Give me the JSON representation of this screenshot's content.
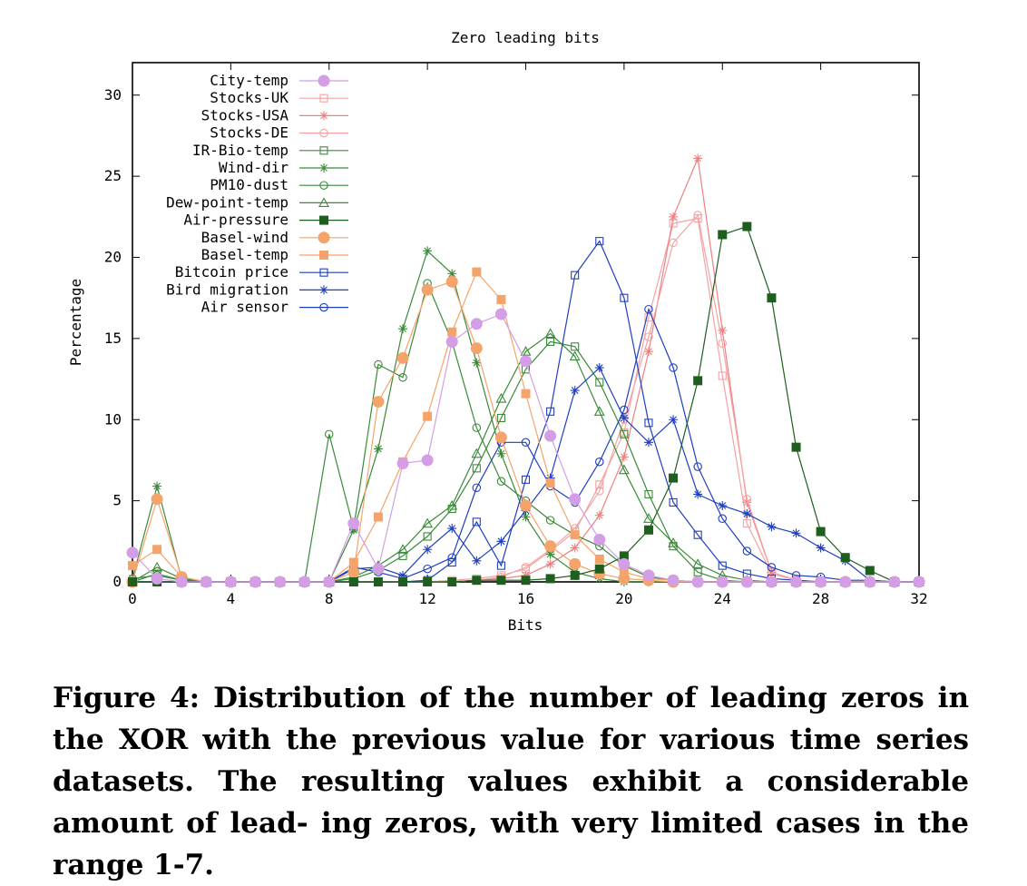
{
  "caption": "Figure 4: Distribution of the number of leading zeros in the XOR with the previous value for various time series datasets. The resulting values exhibit a considerable amount of lead- ing zeros, with very limited cases in the range 1-7.",
  "chart_data": {
    "type": "line",
    "title": "Zero leading bits",
    "xlabel": "Bits",
    "ylabel": "Percentage",
    "xlim": [
      0,
      32
    ],
    "ylim": [
      0,
      32
    ],
    "xticks": [
      0,
      4,
      8,
      12,
      16,
      20,
      24,
      28,
      32
    ],
    "yticks": [
      0,
      5,
      10,
      15,
      20,
      25,
      30
    ],
    "grid": false,
    "legend_position": "top-left",
    "series": [
      {
        "name": "City-temp",
        "color": "#d49ee6",
        "marker": "circle-filled-large",
        "x": [
          0,
          1,
          2,
          3,
          4,
          5,
          6,
          7,
          8,
          9,
          10,
          11,
          12,
          13,
          14,
          15,
          16,
          17,
          18,
          19,
          20,
          21,
          22,
          23,
          24,
          25,
          26,
          27,
          28,
          29,
          30,
          31,
          32
        ],
        "y": [
          1.8,
          0.2,
          0,
          0,
          0,
          0,
          0,
          0,
          0,
          3.6,
          0.8,
          7.3,
          7.5,
          14.8,
          15.9,
          16.5,
          13.6,
          9,
          5.1,
          2.6,
          1.1,
          0.4,
          0.1,
          0,
          0,
          0,
          0,
          0,
          0,
          0,
          0,
          0,
          0
        ]
      },
      {
        "name": "Stocks-UK",
        "color": "#f4a3a3",
        "marker": "square-open",
        "x": [
          0,
          1,
          2,
          3,
          4,
          5,
          6,
          7,
          8,
          9,
          10,
          11,
          12,
          13,
          14,
          15,
          16,
          17,
          18,
          19,
          20,
          21,
          22,
          23,
          24,
          25,
          26,
          27,
          28,
          29,
          30,
          31,
          32
        ],
        "y": [
          0,
          0,
          0,
          0,
          0,
          0,
          0,
          0,
          0,
          0,
          0,
          0,
          0,
          0.1,
          0.2,
          0.4,
          0.8,
          1.9,
          3.1,
          6,
          9.2,
          16.3,
          22.1,
          22.4,
          12.7,
          3.6,
          0.5,
          0.1,
          0,
          0,
          0,
          0,
          0
        ]
      },
      {
        "name": "Stocks-USA",
        "color": "#f08080",
        "marker": "star",
        "x": [
          0,
          1,
          2,
          3,
          4,
          5,
          6,
          7,
          8,
          9,
          10,
          11,
          12,
          13,
          14,
          15,
          16,
          17,
          18,
          19,
          20,
          21,
          22,
          23,
          24,
          25,
          26,
          27,
          28,
          29,
          30,
          31,
          32
        ],
        "y": [
          0,
          0,
          0,
          0,
          0,
          0,
          0,
          0,
          0,
          0,
          0,
          0,
          0,
          0,
          0.1,
          0.2,
          0.4,
          1.1,
          2.1,
          4.1,
          7.7,
          14.2,
          22.5,
          26.1,
          15.5,
          4.9,
          0.6,
          0.1,
          0,
          0,
          0,
          0,
          0
        ]
      },
      {
        "name": "Stocks-DE",
        "color": "#f4a3a3",
        "marker": "circle-open",
        "x": [
          0,
          1,
          2,
          3,
          4,
          5,
          6,
          7,
          8,
          9,
          10,
          11,
          12,
          13,
          14,
          15,
          16,
          17,
          18,
          19,
          20,
          21,
          22,
          23,
          24,
          25,
          26,
          27,
          28,
          29,
          30,
          31,
          32
        ],
        "y": [
          0,
          0,
          0,
          0,
          0,
          0,
          0,
          0,
          0,
          0,
          0,
          0,
          0,
          0,
          0.1,
          0.3,
          0.9,
          2,
          3.3,
          5.6,
          10,
          15.1,
          20.9,
          22.6,
          14.7,
          5.1,
          0.6,
          0.1,
          0,
          0,
          0,
          0,
          0
        ]
      },
      {
        "name": "IR-Bio-temp",
        "color": "#3a8a3a",
        "marker": "square-open",
        "x": [
          0,
          1,
          2,
          3,
          4,
          5,
          6,
          7,
          8,
          9,
          10,
          11,
          12,
          13,
          14,
          15,
          16,
          17,
          18,
          19,
          20,
          21,
          22,
          23,
          24,
          25,
          26,
          27,
          28,
          29,
          30,
          31,
          32
        ],
        "y": [
          0,
          0.5,
          0.1,
          0,
          0,
          0,
          0,
          0,
          0,
          0.2,
          0.7,
          1.6,
          2.8,
          4.5,
          7,
          10.1,
          13.1,
          14.8,
          14.5,
          12.3,
          9.1,
          5.4,
          2.2,
          0.6,
          0.1,
          0,
          0,
          0,
          0,
          0,
          0,
          0,
          0
        ]
      },
      {
        "name": "Wind-dir",
        "color": "#3a8a3a",
        "marker": "star",
        "x": [
          0,
          1,
          2,
          3,
          4,
          5,
          6,
          7,
          8,
          9,
          10,
          11,
          12,
          13,
          14,
          15,
          16,
          17,
          18,
          19,
          20,
          21,
          22,
          23,
          24,
          25,
          26,
          27,
          28,
          29,
          30,
          31,
          32
        ],
        "y": [
          0.2,
          5.9,
          0.2,
          0,
          0,
          0,
          0,
          0,
          0,
          3.2,
          8.2,
          15.6,
          20.4,
          19,
          13.5,
          7.9,
          4,
          1.7,
          0.6,
          0.2,
          0,
          0,
          0,
          0,
          0,
          0,
          0,
          0,
          0,
          0,
          0,
          0,
          0
        ]
      },
      {
        "name": "PM10-dust",
        "color": "#3a8a3a",
        "marker": "circle-open",
        "x": [
          0,
          1,
          2,
          3,
          4,
          5,
          6,
          7,
          8,
          9,
          10,
          11,
          12,
          13,
          14,
          15,
          16,
          17,
          18,
          19,
          20,
          21,
          22,
          23,
          24,
          25,
          26,
          27,
          28,
          29,
          30,
          31,
          32
        ],
        "y": [
          0.2,
          0.4,
          0.1,
          0,
          0,
          0,
          0,
          0,
          9.1,
          3.3,
          13.4,
          12.6,
          18.4,
          14.8,
          9.5,
          6.2,
          5,
          3.8,
          2.9,
          2.2,
          1,
          0.3,
          0.1,
          0,
          0,
          0,
          0,
          0,
          0,
          0,
          0,
          0,
          0
        ]
      },
      {
        "name": "Dew-point-temp",
        "color": "#3a8a3a",
        "marker": "triangle-open",
        "x": [
          0,
          1,
          2,
          3,
          4,
          5,
          6,
          7,
          8,
          9,
          10,
          11,
          12,
          13,
          14,
          15,
          16,
          17,
          18,
          19,
          20,
          21,
          22,
          23,
          24,
          25,
          26,
          27,
          28,
          29,
          30,
          31,
          32
        ],
        "y": [
          0,
          0.9,
          0.2,
          0,
          0,
          0,
          0,
          0,
          0,
          0.3,
          1,
          2,
          3.6,
          4.7,
          7.9,
          11.3,
          14.2,
          15.3,
          13.9,
          10.5,
          6.9,
          3.9,
          2.4,
          1.1,
          0.4,
          0.1,
          0,
          0,
          0,
          0,
          0,
          0,
          0
        ]
      },
      {
        "name": "Air-pressure",
        "color": "#1e5e1e",
        "marker": "square-filled",
        "x": [
          0,
          1,
          2,
          3,
          4,
          5,
          6,
          7,
          8,
          9,
          10,
          11,
          12,
          13,
          14,
          15,
          16,
          17,
          18,
          19,
          20,
          21,
          22,
          23,
          24,
          25,
          26,
          27,
          28,
          29,
          30,
          31,
          32
        ],
        "y": [
          0,
          0,
          0,
          0,
          0,
          0,
          0,
          0,
          0,
          0,
          0,
          0,
          0,
          0,
          0.1,
          0.1,
          0.1,
          0.2,
          0.4,
          0.8,
          1.6,
          3.2,
          6.4,
          12.4,
          21.4,
          21.9,
          17.5,
          8.3,
          3.1,
          1.5,
          0.7,
          0,
          0
        ]
      },
      {
        "name": "Basel-wind",
        "color": "#f4a46a",
        "marker": "circle-filled-large",
        "x": [
          0,
          1,
          2,
          3,
          4,
          5,
          6,
          7,
          8,
          9,
          10,
          11,
          12,
          13,
          14,
          15,
          16,
          17,
          18,
          19,
          20,
          21,
          22,
          23,
          24,
          25,
          26,
          27,
          28,
          29,
          30,
          31,
          32
        ],
        "y": [
          0,
          5.1,
          0.3,
          0,
          0,
          0,
          0,
          0,
          0,
          0.6,
          11.1,
          13.8,
          18,
          18.5,
          14.4,
          8.9,
          4.7,
          2.2,
          1.1,
          0.5,
          0.2,
          0.1,
          0,
          0,
          0,
          0,
          0,
          0,
          0,
          0,
          0,
          0,
          0
        ]
      },
      {
        "name": "Basel-temp",
        "color": "#f4a46a",
        "marker": "square-filled",
        "x": [
          0,
          1,
          2,
          3,
          4,
          5,
          6,
          7,
          8,
          9,
          10,
          11,
          12,
          13,
          14,
          15,
          16,
          17,
          18,
          19,
          20,
          21,
          22,
          23,
          24,
          25,
          26,
          27,
          28,
          29,
          30,
          31,
          32
        ],
        "y": [
          1,
          2,
          0.3,
          0,
          0,
          0,
          0,
          0,
          0,
          1.2,
          4,
          7.4,
          10.2,
          15.4,
          19.1,
          17.4,
          11.6,
          6.1,
          2.9,
          1.4,
          0.6,
          0.2,
          0.1,
          0,
          0,
          0,
          0,
          0,
          0,
          0,
          0,
          0,
          0
        ]
      },
      {
        "name": "Bitcoin price",
        "color": "#1f3fbf",
        "marker": "square-open",
        "x": [
          0,
          1,
          2,
          3,
          4,
          5,
          6,
          7,
          8,
          9,
          10,
          11,
          12,
          13,
          14,
          15,
          16,
          17,
          18,
          19,
          20,
          21,
          22,
          23,
          24,
          25,
          26,
          27,
          28,
          29,
          30,
          31,
          32
        ],
        "y": [
          0,
          0,
          0,
          0,
          0,
          0,
          0,
          0,
          0,
          0,
          0,
          0,
          0.1,
          1.2,
          3.7,
          1,
          6.3,
          10.5,
          18.9,
          21,
          17.5,
          9.8,
          4.9,
          2.9,
          1,
          0.5,
          0.2,
          0.1,
          0,
          0,
          0,
          0,
          0
        ]
      },
      {
        "name": "Bird migration",
        "color": "#1f3fbf",
        "marker": "star",
        "x": [
          0,
          1,
          2,
          3,
          4,
          5,
          6,
          7,
          8,
          9,
          10,
          11,
          12,
          13,
          14,
          15,
          16,
          17,
          18,
          19,
          20,
          21,
          22,
          23,
          24,
          25,
          26,
          27,
          28,
          29,
          30,
          31,
          32
        ],
        "y": [
          0,
          0,
          0,
          0,
          0,
          0,
          0,
          0,
          0,
          0.8,
          0.9,
          0.4,
          2,
          3.3,
          1.3,
          2.5,
          4.4,
          6.4,
          11.8,
          13.2,
          10.1,
          8.6,
          10,
          5.4,
          4.7,
          4.2,
          3.4,
          3,
          2.1,
          1.3,
          0.1,
          0,
          0
        ]
      },
      {
        "name": "Air sensor",
        "color": "#1f3fbf",
        "marker": "circle-open",
        "x": [
          0,
          1,
          2,
          3,
          4,
          5,
          6,
          7,
          8,
          9,
          10,
          11,
          12,
          13,
          14,
          15,
          16,
          17,
          18,
          19,
          20,
          21,
          22,
          23,
          24,
          25,
          26,
          27,
          28,
          29,
          30,
          31,
          32
        ],
        "y": [
          0,
          0,
          0,
          0,
          0,
          0,
          0,
          0,
          0,
          0.9,
          0.6,
          0.2,
          0.8,
          1.5,
          5.8,
          8.6,
          8.6,
          5.9,
          4.9,
          7.4,
          10.6,
          16.8,
          13.2,
          7.1,
          3.9,
          1.9,
          0.9,
          0.4,
          0.3,
          0.1,
          0.1,
          0,
          0
        ]
      }
    ]
  }
}
